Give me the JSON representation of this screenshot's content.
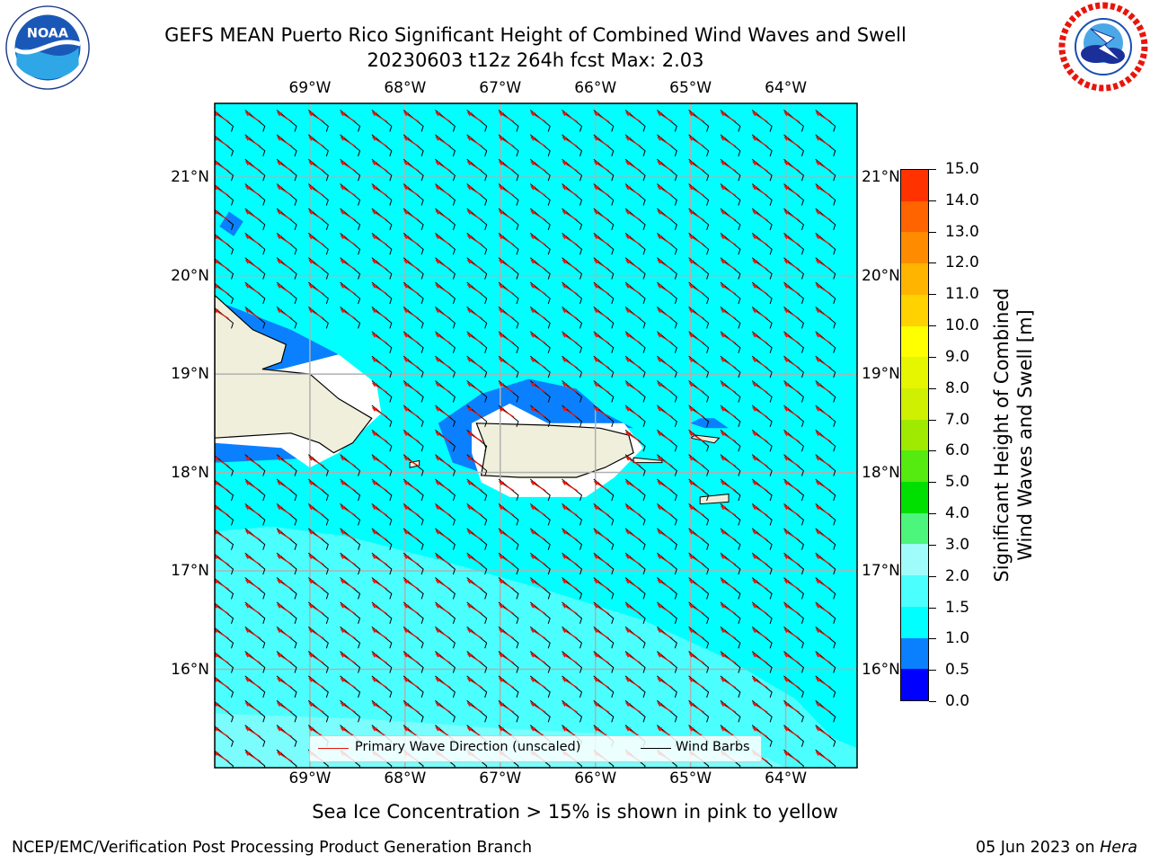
{
  "title": {
    "line1": "GEFS MEAN Puerto Rico Significant Height of Combined Wind Waves and Swell",
    "line2": "20230603 t12z 264h fcst   Max: 2.03"
  },
  "logos": {
    "left": {
      "icon": "noaa-logo-icon",
      "text": "NOAA",
      "ring_text": "NATIONAL OCEANIC AND ATMOSPHERIC ADMINISTRATION · U.S. DEPARTMENT OF COMMERCE"
    },
    "right": {
      "icon": "nws-logo-icon",
      "ring_text": "NATIONAL WEATHER SERVICE"
    }
  },
  "map": {
    "lon_ticks": [
      "69°W",
      "68°W",
      "67°W",
      "66°W",
      "65°W",
      "64°W"
    ],
    "lat_ticks": [
      "21°N",
      "20°N",
      "19°N",
      "18°N",
      "17°N",
      "16°N"
    ],
    "lon_values": [
      -69,
      -68,
      -67,
      -66,
      -65,
      -64
    ],
    "lat_values": [
      21,
      20,
      19,
      18,
      17,
      16
    ],
    "extent": {
      "lon_min": -70.0,
      "lon_max": -63.25,
      "lat_min": 15.0,
      "lat_max": 21.75
    },
    "colors": {
      "ocean_main": "#00ffff",
      "ocean_light": "#4cffff",
      "ocean_lighter": "#a0fcfa",
      "band_blue": "#0a80ff",
      "land": "#efefdc",
      "wave_arrow": "#e8150c",
      "barb": "#000000"
    }
  },
  "legend": {
    "wave_label": "Primary Wave Direction (unscaled)",
    "barb_label": "Wind Barbs"
  },
  "colorbar": {
    "label_line1": "Significant Height of Combined",
    "label_line2": "Wind Waves and Swell [m]",
    "ticks": [
      "0.0",
      "0.5",
      "1.0",
      "1.5",
      "2.0",
      "3.0",
      "4.0",
      "5.0",
      "6.0",
      "7.0",
      "8.0",
      "9.0",
      "10.0",
      "11.0",
      "12.0",
      "13.0",
      "14.0",
      "15.0"
    ],
    "colors": [
      "#0000ff",
      "#0a80ff",
      "#00ffff",
      "#4cffff",
      "#a0fcfa",
      "#4cf57c",
      "#00e000",
      "#55ea10",
      "#9fea00",
      "#cff000",
      "#e6f500",
      "#ffff00",
      "#ffd200",
      "#ffb400",
      "#ff8c00",
      "#ff6400",
      "#ff3200"
    ]
  },
  "ice_note": "Sea Ice Concentration > 15% is shown in pink to yellow",
  "footer": {
    "left": "NCEP/EMC/Verification Post Processing Product Generation Branch",
    "right_prefix": "05 Jun 2023 on ",
    "right_host": "Hera"
  }
}
